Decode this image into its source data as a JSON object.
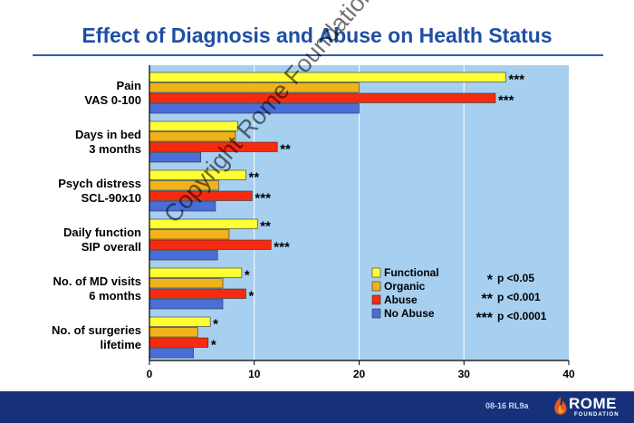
{
  "header": {
    "title": "Effect of Diagnosis and Abuse on Health Status"
  },
  "footer": {
    "slide_code": "08-16  RL9a",
    "logo_text": "ROME",
    "logo_sub": "FOUNDATION"
  },
  "watermark": "Copyright Rome Foundation",
  "colors": {
    "plot_bg": "#a6cff0",
    "Functional": "#ffff33",
    "Organic": "#f2b21a",
    "Abuse": "#f52b10",
    "No Abuse": "#4a6ed8"
  },
  "chart_data": {
    "type": "bar",
    "orientation": "horizontal",
    "title": "Effect of Diagnosis and Abuse on Health Status",
    "categories": [
      [
        "Pain",
        "VAS 0-100"
      ],
      [
        "Days in bed",
        "3 months"
      ],
      [
        "Psych distress",
        "SCL-90x10"
      ],
      [
        "Daily function",
        "SIP overall"
      ],
      [
        "No. of MD visits",
        "6 months"
      ],
      [
        "No. of surgeries",
        "lifetime"
      ]
    ],
    "series": [
      {
        "name": "Functional",
        "values": [
          34,
          8.4,
          9.2,
          10.3,
          8.8,
          5.8
        ]
      },
      {
        "name": "Organic",
        "values": [
          20,
          8.2,
          6.6,
          7.6,
          7.0,
          4.6
        ]
      },
      {
        "name": "Abuse",
        "values": [
          33,
          12.2,
          9.8,
          11.6,
          9.2,
          5.6
        ]
      },
      {
        "name": "No Abuse",
        "values": [
          20,
          4.9,
          6.3,
          6.5,
          7.0,
          4.2
        ]
      }
    ],
    "significance_labels": [
      [
        "***",
        "",
        "***",
        ""
      ],
      [
        "",
        "",
        "**",
        ""
      ],
      [
        "**",
        "",
        "***",
        ""
      ],
      [
        "**",
        "",
        "***",
        ""
      ],
      [
        "*",
        "",
        "*",
        ""
      ],
      [
        "*",
        "",
        "*",
        ""
      ]
    ],
    "xlim": [
      0,
      40
    ],
    "xticks": [
      0,
      10,
      20,
      30,
      40
    ],
    "grid": "vertical",
    "legend": {
      "placement": "lower-right",
      "entries": [
        "Functional",
        "Organic",
        "Abuse",
        "No Abuse"
      ]
    },
    "significance_key": [
      {
        "symbol": "*",
        "label": "p <0.05"
      },
      {
        "symbol": "**",
        "label": "p <0.001"
      },
      {
        "symbol": "***",
        "label": "p <0.0001"
      }
    ]
  }
}
